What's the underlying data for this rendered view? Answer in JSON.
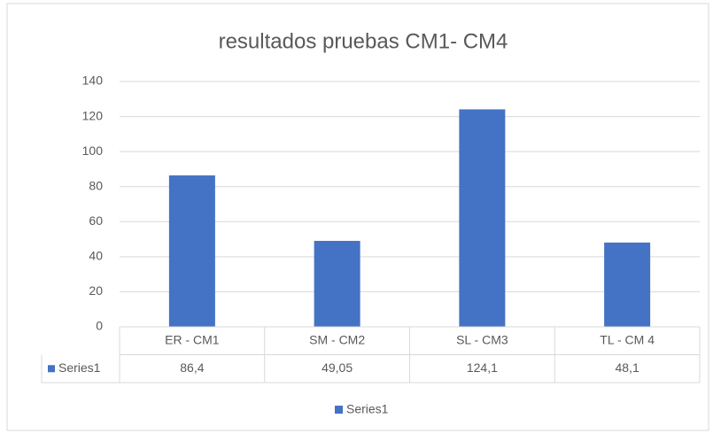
{
  "chart_data": {
    "type": "bar",
    "title": "resultados pruebas CM1- CM4",
    "categories": [
      "ER - CM1",
      "SM - CM2",
      "SL - CM3",
      "TL - CM 4"
    ],
    "series": [
      {
        "name": "Series1",
        "color": "#4472c4",
        "values": [
          86.4,
          49.05,
          124.1,
          48.1
        ],
        "value_labels": [
          "86,4",
          "49,05",
          "124,1",
          "48,1"
        ]
      }
    ],
    "ylim": [
      0,
      140
    ],
    "yticks": [
      0,
      20,
      40,
      60,
      80,
      100,
      120,
      140
    ],
    "grid": true,
    "legend": "bottom",
    "data_table": true
  }
}
